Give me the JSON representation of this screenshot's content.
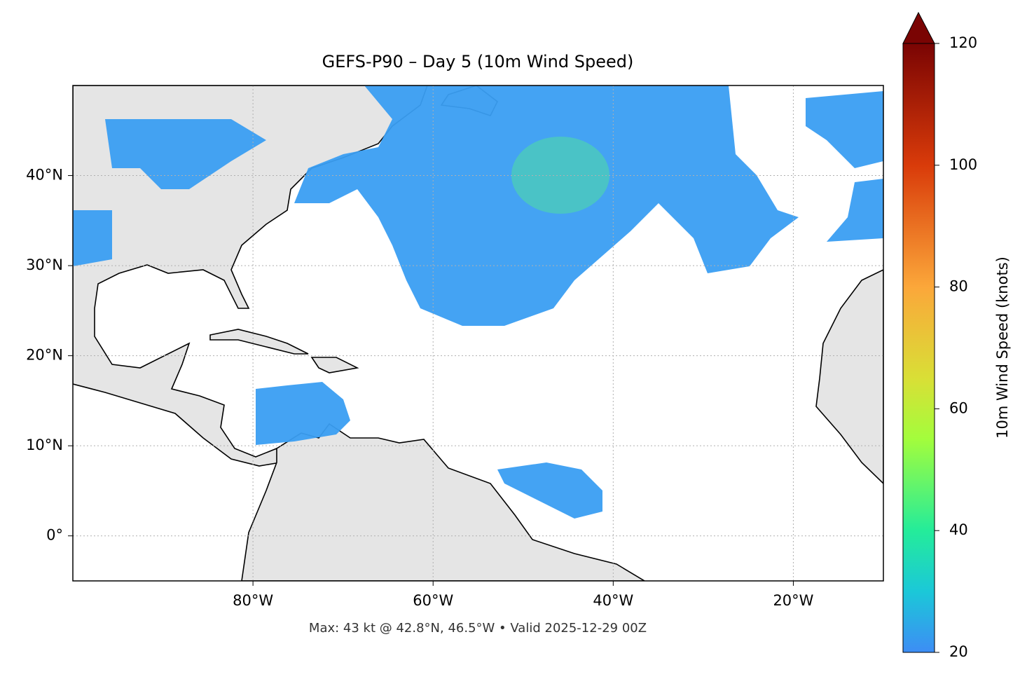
{
  "map": {
    "title": "GEFS-P90 – Day 5 (10m Wind Speed)",
    "lon_lim": [
      -100,
      -10
    ],
    "lat_lim": [
      -5,
      50
    ],
    "xticks": [
      {
        "value": -80,
        "label": "80°W"
      },
      {
        "value": -60,
        "label": "60°W"
      },
      {
        "value": -40,
        "label": "40°W"
      },
      {
        "value": -20,
        "label": "20°W"
      }
    ],
    "yticks": [
      {
        "value": 0,
        "label": "0°"
      },
      {
        "value": 10,
        "label": "10°N"
      },
      {
        "value": 20,
        "label": "20°N"
      },
      {
        "value": 30,
        "label": "30°N"
      },
      {
        "value": 40,
        "label": "40°N"
      }
    ],
    "footer": "Max: 43 kt @ 42.8°N, 46.5°W • Valid 2025-12-29 00Z",
    "colorbar": {
      "label": "10m Wind Speed (knots)",
      "lim": [
        20,
        120
      ],
      "ticks": [
        20,
        40,
        60,
        80,
        100,
        120
      ]
    }
  }
}
